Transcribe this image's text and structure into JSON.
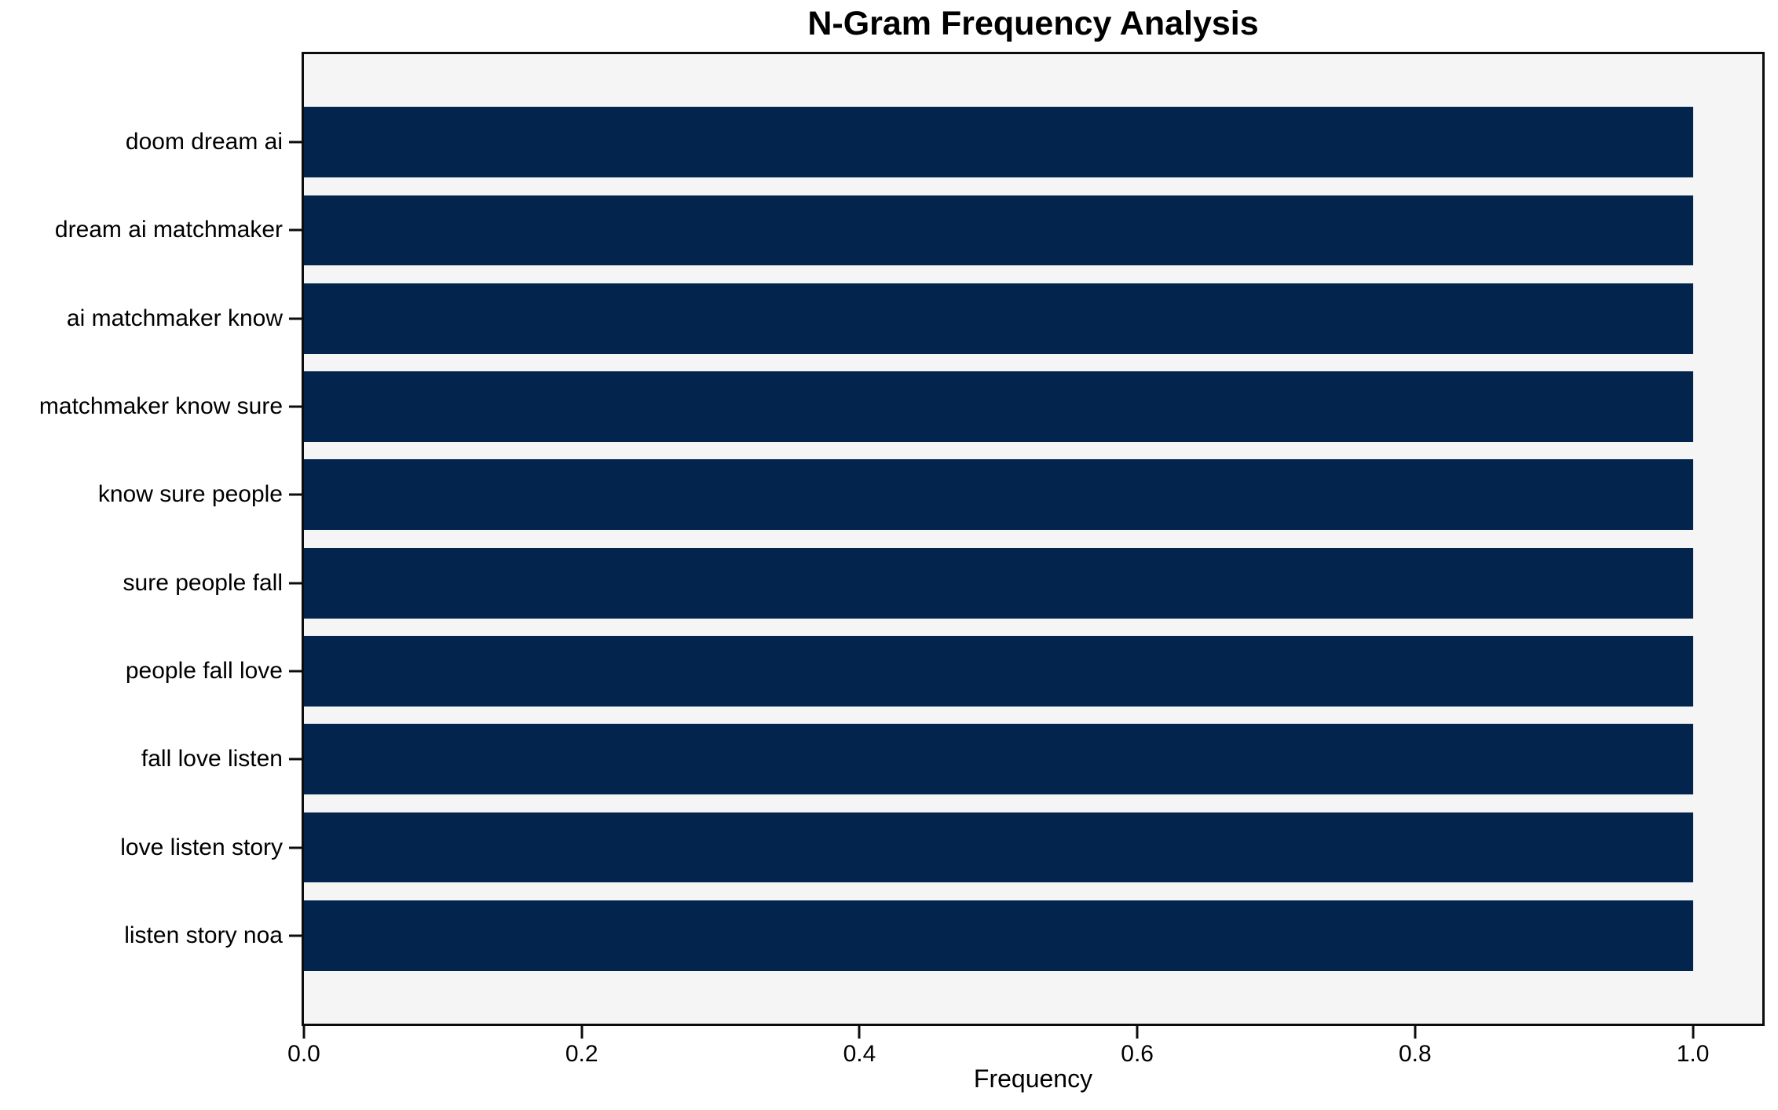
{
  "figure": {
    "title": "N-Gram Frequency Analysis",
    "xlabel": "Frequency"
  },
  "chart_data": {
    "type": "bar",
    "orientation": "horizontal",
    "title": "N-Gram Frequency Analysis",
    "xlabel": "Frequency",
    "ylabel": "",
    "categories": [
      "doom dream ai",
      "dream ai matchmaker",
      "ai matchmaker know",
      "matchmaker know sure",
      "know sure people",
      "sure people fall",
      "people fall love",
      "fall love listen",
      "love listen story",
      "listen story noa"
    ],
    "values": [
      1.0,
      1.0,
      1.0,
      1.0,
      1.0,
      1.0,
      1.0,
      1.0,
      1.0,
      1.0
    ],
    "x_tick_labels": [
      "0.0",
      "0.2",
      "0.4",
      "0.6",
      "0.8",
      "1.0"
    ],
    "x_tick_values": [
      0.0,
      0.2,
      0.4,
      0.6,
      0.8,
      1.0
    ],
    "xlim": [
      0,
      1.05
    ],
    "bar_height_fraction": 0.8,
    "grid": false,
    "legend": false,
    "colors": {
      "bar": "#03254d",
      "plot_background": "#f5f5f5",
      "figure_background": "#ffffff",
      "spine": "#0c0c0c",
      "text": "#000000"
    }
  }
}
